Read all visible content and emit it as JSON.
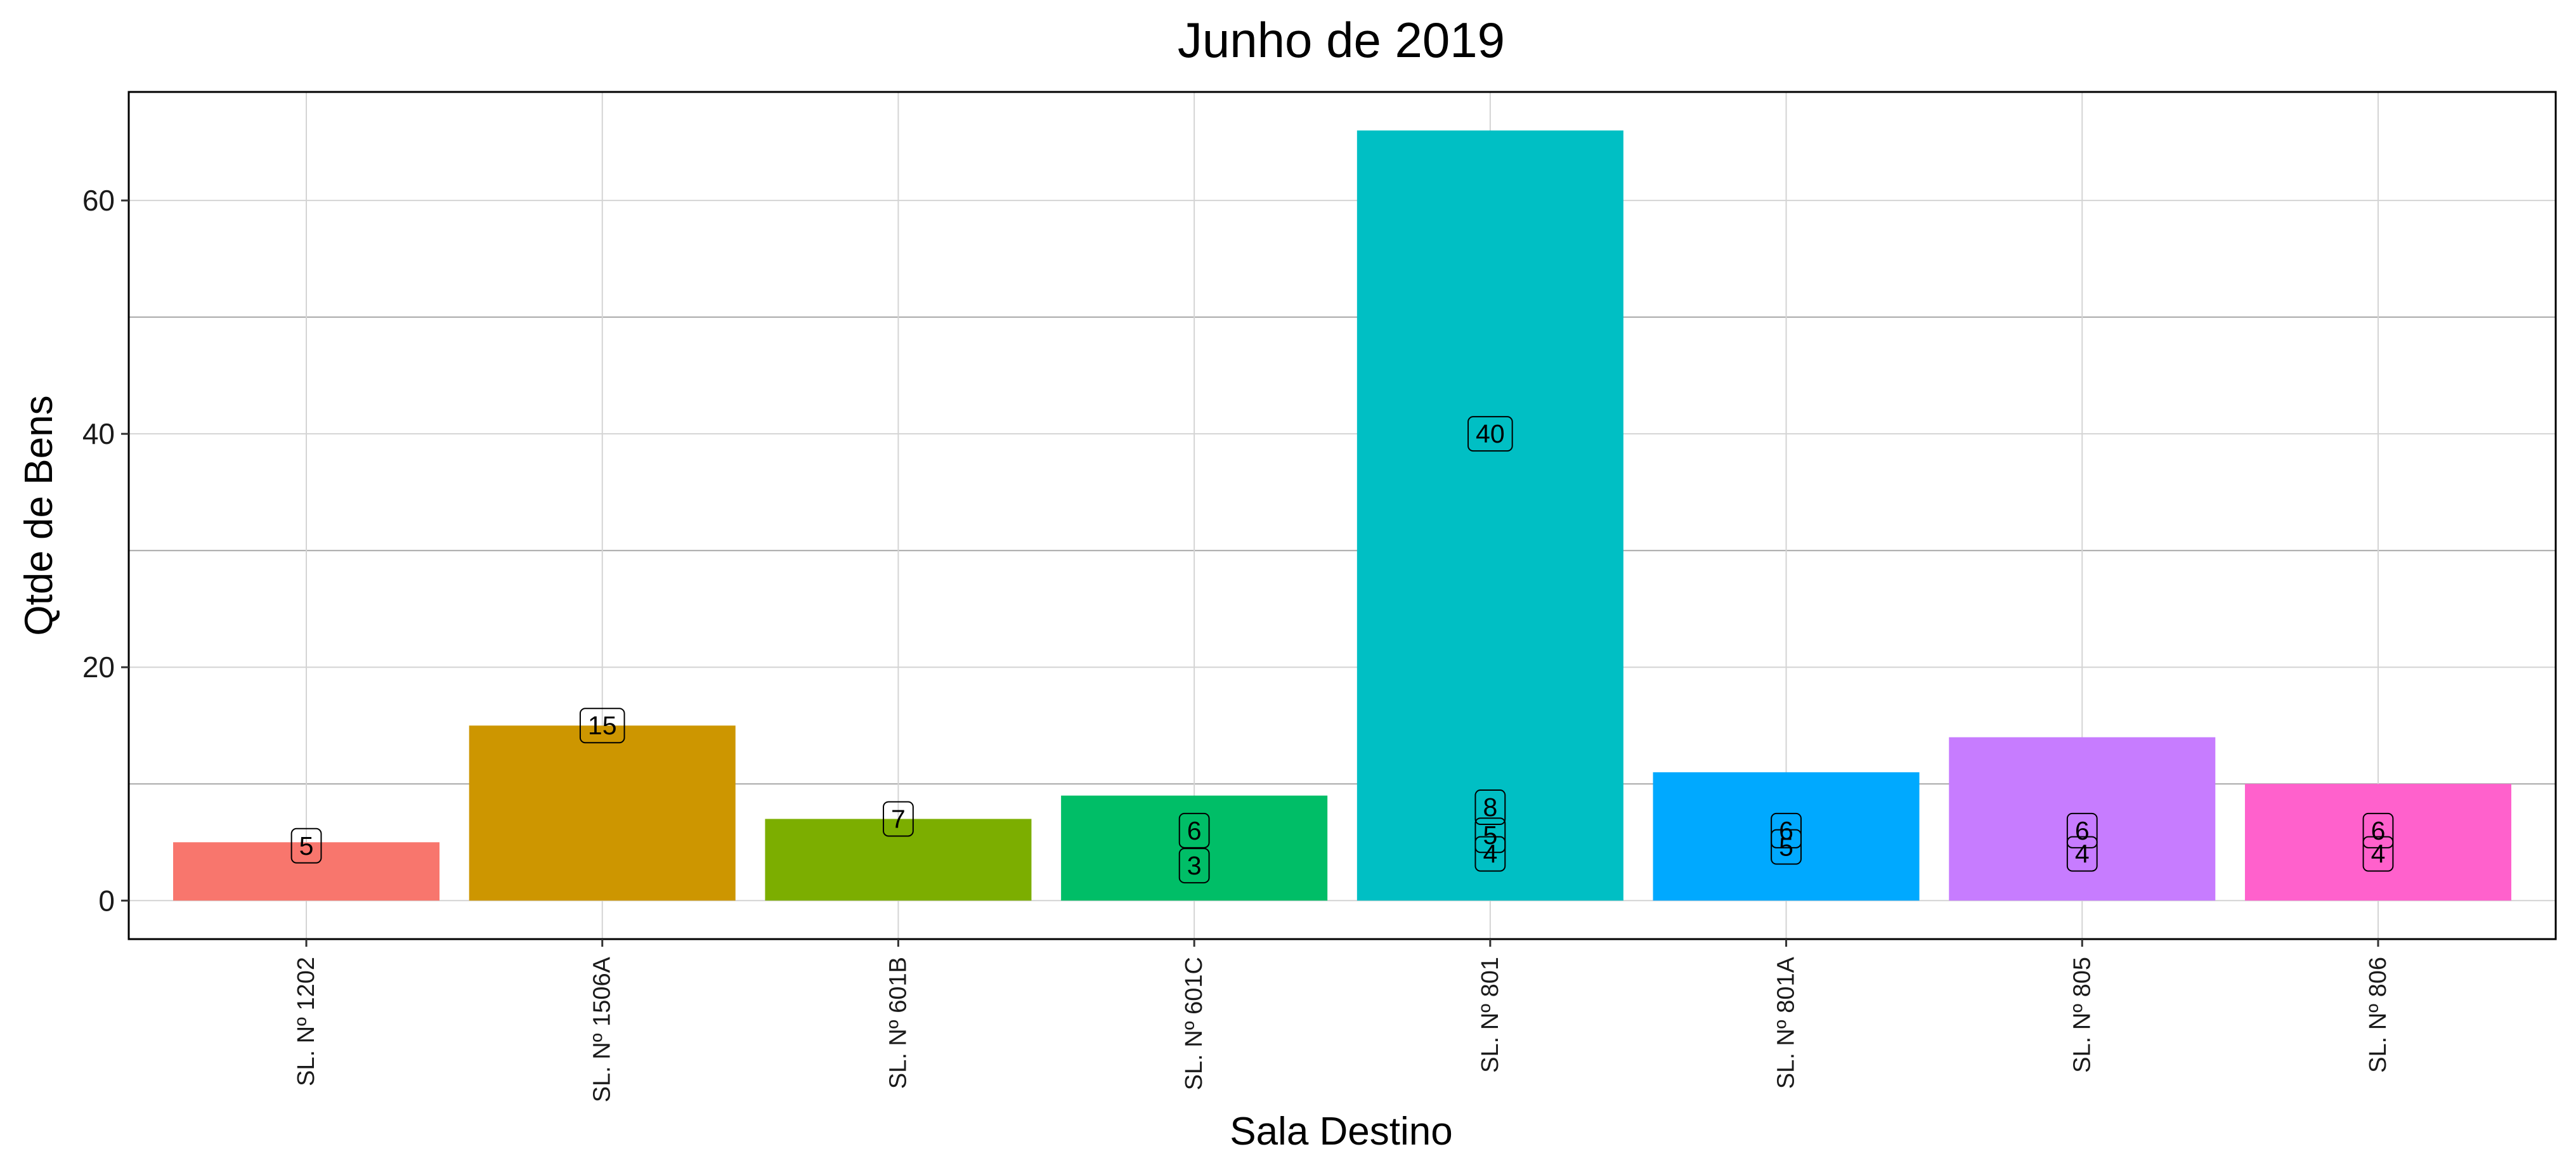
{
  "chart_data": {
    "type": "bar",
    "title": "Junho  de  2019",
    "xlabel": "Sala Destino",
    "ylabel": "Qtde de Bens",
    "ylim": [
      -3.3,
      69.3
    ],
    "yticks": [
      0,
      20,
      40,
      60
    ],
    "grid": true,
    "legend": "none",
    "categories": [
      "SL. Nº 1202",
      "SL. Nº 1506A",
      "SL. Nº 601B",
      "SL. Nº 601C",
      "SL. Nº 801",
      "SL. Nº 801A",
      "SL. Nº 805",
      "SL. Nº 806"
    ],
    "values": [
      5,
      15,
      7,
      9,
      66,
      11,
      14,
      10
    ],
    "colors": [
      "#F8766D",
      "#CD9600",
      "#7CAE00",
      "#00BE67",
      "#00BFC4",
      "#00A9FF",
      "#C77CFF",
      "#FF61CC"
    ],
    "segment_labels": [
      [
        {
          "y": 4.7,
          "text": "5"
        }
      ],
      [
        {
          "y": 15,
          "text": "15"
        }
      ],
      [
        {
          "y": 7,
          "text": "7"
        }
      ],
      [
        {
          "y": 6,
          "text": "6"
        },
        {
          "y": 3,
          "text": "3"
        }
      ],
      [
        {
          "y": 40,
          "text": "40"
        },
        {
          "y": 8,
          "text": "8"
        },
        {
          "y": 5.6,
          "text": "5"
        },
        {
          "y": 4,
          "text": "4"
        }
      ],
      [
        {
          "y": 4.6,
          "text": "5"
        },
        {
          "y": 6,
          "text": "6"
        }
      ],
      [
        {
          "y": 6,
          "text": "6"
        },
        {
          "y": 4,
          "text": "4"
        }
      ],
      [
        {
          "y": 6,
          "text": "6"
        },
        {
          "y": 4,
          "text": "4"
        }
      ]
    ]
  }
}
